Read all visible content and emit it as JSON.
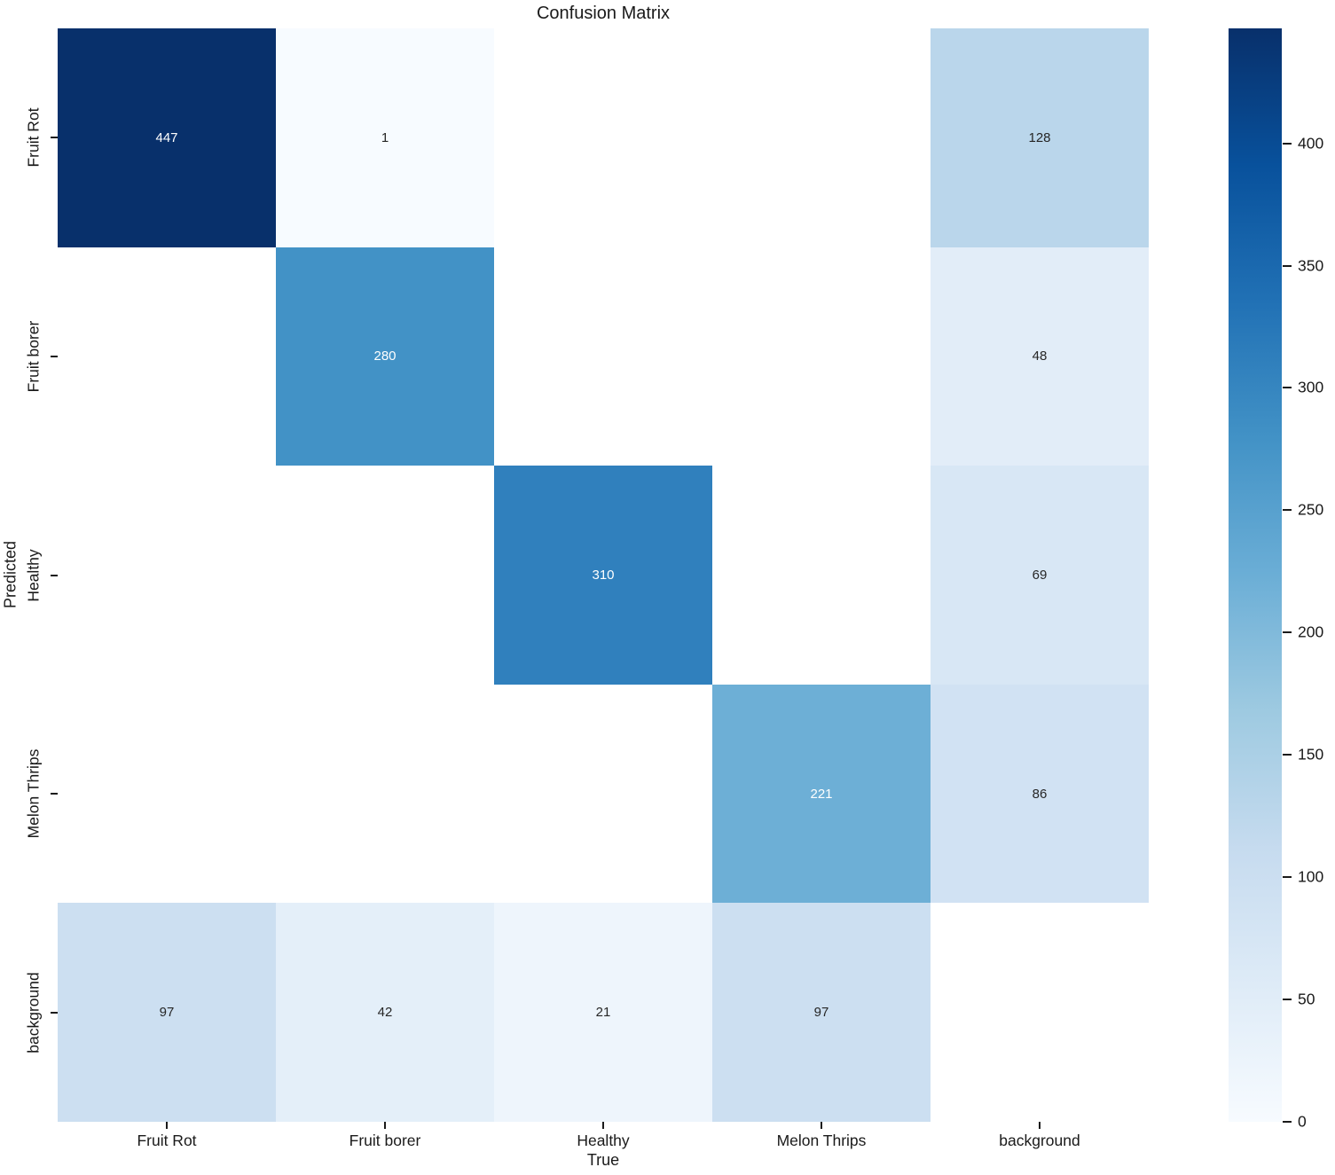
{
  "title": "Confusion Matrix",
  "chart_data": {
    "type": "heatmap",
    "title": "Confusion Matrix",
    "xlabel": "True",
    "ylabel": "Predicted",
    "x_categories": [
      "Fruit Rot",
      "Fruit borer",
      "Healthy",
      "Melon Thrips",
      "background"
    ],
    "y_categories": [
      "Fruit Rot",
      "Fruit borer",
      "Healthy",
      "Melon Thrips",
      "background"
    ],
    "values": [
      [
        447,
        1,
        null,
        null,
        128
      ],
      [
        null,
        280,
        null,
        null,
        48
      ],
      [
        null,
        null,
        310,
        null,
        69
      ],
      [
        null,
        null,
        null,
        221,
        86
      ],
      [
        97,
        42,
        21,
        97,
        null
      ]
    ],
    "vmin": 0,
    "vmax": 447,
    "colormap_name": "Blues",
    "colormap_stops": [
      {
        "t": 0.0,
        "color": "#f7fbff"
      },
      {
        "t": 0.125,
        "color": "#deebf7"
      },
      {
        "t": 0.25,
        "color": "#c6dbef"
      },
      {
        "t": 0.375,
        "color": "#9ecae1"
      },
      {
        "t": 0.5,
        "color": "#6baed6"
      },
      {
        "t": 0.625,
        "color": "#4292c6"
      },
      {
        "t": 0.75,
        "color": "#2171b5"
      },
      {
        "t": 0.875,
        "color": "#08519c"
      },
      {
        "t": 1.0,
        "color": "#08306b"
      }
    ],
    "empty_cell_color": "#ffffff",
    "annotation_color_dark_bg": "#ffffff",
    "annotation_color_light_bg": "#262626",
    "colorbar_ticks": [
      0,
      50,
      100,
      150,
      200,
      250,
      300,
      350,
      400
    ],
    "legend_position": "right-colorbar",
    "grid": false
  }
}
